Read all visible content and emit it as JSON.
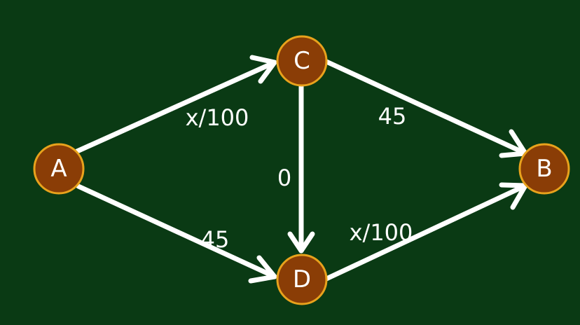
{
  "nodes": {
    "A": {
      "label": "A"
    },
    "B": {
      "label": "B"
    },
    "C": {
      "label": "C"
    },
    "D": {
      "label": "D"
    }
  },
  "edges": {
    "AC": {
      "label": "x/100"
    },
    "CB": {
      "label": "45"
    },
    "AD": {
      "label": "45"
    },
    "DB": {
      "label": "x/100"
    },
    "CD": {
      "label": "0"
    }
  },
  "colors": {
    "background": "#0a3a14",
    "node_fill": "#8a3d06",
    "node_stroke": "#e8a21c",
    "edge": "#ffffff"
  }
}
